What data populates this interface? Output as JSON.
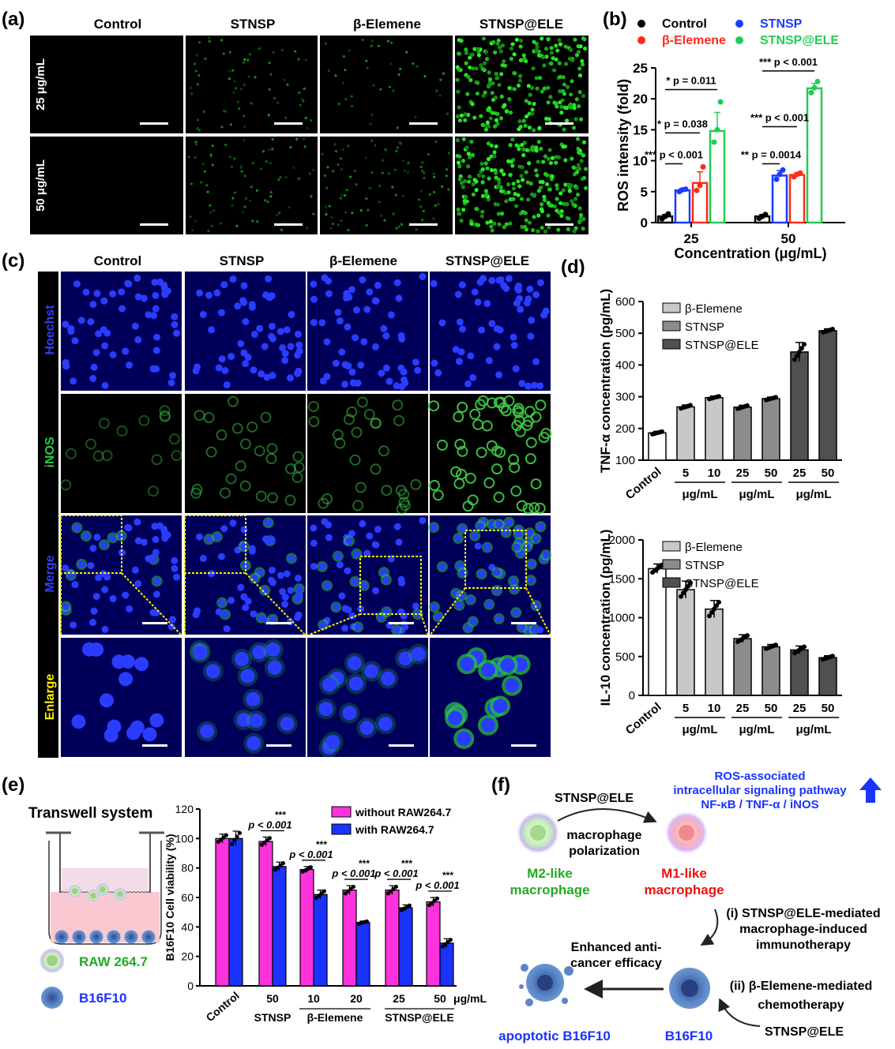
{
  "panel_a": {
    "letter": "(a)",
    "columns": [
      "Control",
      "STNSP",
      "β-Elemene",
      "STNSP@ELE"
    ],
    "rows": [
      "25 μg/mL",
      "50 μg/mL"
    ],
    "density": [
      [
        0.0,
        0.25,
        0.15,
        0.9
      ],
      [
        0.0,
        0.3,
        0.35,
        1.0
      ]
    ]
  },
  "panel_c": {
    "letter": "(c)",
    "columns": [
      "Control",
      "STNSP",
      "β-Elemene",
      "STNSP@ELE"
    ],
    "rows": [
      {
        "label": "Hoechst",
        "color": "#3040ff"
      },
      {
        "label": "iNOS",
        "color": "#22cc44"
      },
      {
        "label": "Merge",
        "color": "#3040ff"
      },
      {
        "label": "Enlarge",
        "color": "#ffee00"
      }
    ],
    "inos_level": [
      0.15,
      0.3,
      0.3,
      0.9
    ]
  },
  "panel_e": {
    "letter": "(e)",
    "schematic_title": "Transwell system",
    "legend_cells": [
      "RAW 264.7",
      "B16F10"
    ]
  },
  "panel_f": {
    "letter": "(f)",
    "top_label": "STNSP@ELE",
    "polarization": [
      "macrophage",
      "polarization"
    ],
    "pathway": [
      "ROS-associated",
      "intracellular signaling pathway",
      "NF-κB / TNF-α / iNOS"
    ],
    "m2": [
      "M2-like",
      "macrophage"
    ],
    "m1": [
      "M1-like",
      "macrophage"
    ],
    "route_i": [
      "(i) STNSP@ELE-mediated",
      "macrophage-induced",
      "immunotherapy"
    ],
    "route_ii": [
      "(ii) β-Elemene-mediated",
      "chemotherapy"
    ],
    "enhanced": [
      "Enhanced anti-",
      "cancer efficacy"
    ],
    "apoptotic": "apoptotic B16F10",
    "b16": "B16F10",
    "bottom_label": "STNSP@ELE"
  },
  "chart_data": [
    {
      "id": "b",
      "letter": "(b)",
      "type": "bar",
      "ylabel": "ROS intensity (fold)",
      "xlabel": "Concentration (μg/mL)",
      "categories": [
        "25",
        "50"
      ],
      "ylim": [
        0,
        25
      ],
      "yticks": [
        0,
        5,
        10,
        15,
        20,
        25
      ],
      "series": [
        {
          "name": "Control",
          "color": "#000000",
          "values": [
            1.0,
            1.0
          ],
          "err": [
            0.3,
            0.3
          ],
          "points": [
            [
              0.6,
              1.0,
              1.4
            ],
            [
              0.7,
              1.0,
              1.3
            ]
          ]
        },
        {
          "name": "STNSP",
          "color": "#1a3cff",
          "values": [
            5.2,
            7.6
          ],
          "err": [
            0.3,
            0.8
          ],
          "points": [
            [
              5.0,
              5.3,
              5.4
            ],
            [
              7.0,
              7.8,
              8.5
            ]
          ]
        },
        {
          "name": "β-Elemene",
          "color": "#ff2a1a",
          "values": [
            6.4,
            7.7
          ],
          "err": [
            1.8,
            0.3
          ],
          "points": [
            [
              5.2,
              6.0,
              9.0
            ],
            [
              7.4,
              7.8,
              8.0
            ]
          ]
        },
        {
          "name": "STNSP@ELE",
          "color": "#22cc55",
          "values": [
            14.8,
            21.7
          ],
          "err": [
            3.0,
            0.8
          ],
          "points": [
            [
              13.0,
              15.0,
              19.5
            ],
            [
              21.0,
              21.8,
              22.8
            ]
          ]
        }
      ],
      "annotations": [
        {
          "text": "*** p < 0.001",
          "group": 0,
          "from": 0,
          "to": 1,
          "y": 9.5
        },
        {
          "text": "* p = 0.038",
          "group": 0,
          "from": 0,
          "to": 2,
          "y": 14.5
        },
        {
          "text": "* p = 0.011",
          "group": 0,
          "from": 0,
          "to": 3,
          "y": 21.5
        },
        {
          "text": "** p = 0.0014",
          "group": 1,
          "from": 0,
          "to": 1,
          "y": 9.5
        },
        {
          "text": "*** p < 0.001",
          "group": 1,
          "from": 0,
          "to": 2,
          "y": 15.5
        },
        {
          "text": "*** p < 0.001",
          "group": 1,
          "from": 0,
          "to": 3,
          "y": 24.5
        }
      ]
    },
    {
      "id": "d1",
      "letter": "(d)",
      "type": "bar",
      "ylabel": "TNF-α concentration (pg/mL)",
      "categories": [
        "Control",
        "5",
        "10",
        "25",
        "50",
        "25",
        "50"
      ],
      "group_labels": [
        "μg/mL",
        "μg/mL",
        "μg/mL"
      ],
      "ylim": [
        100,
        600
      ],
      "yticks": [
        100,
        200,
        300,
        400,
        500,
        600
      ],
      "values": [
        186,
        268,
        297,
        267,
        294,
        441,
        508
      ],
      "err": [
        5,
        6,
        5,
        6,
        5,
        30,
        6
      ],
      "colors": [
        "#ffffff",
        "#c8c8c8",
        "#c8c8c8",
        "#8c8c8c",
        "#8c8c8c",
        "#505050",
        "#505050"
      ],
      "legend": [
        {
          "name": "β-Elemene",
          "color": "#c8c8c8"
        },
        {
          "name": "STNSP",
          "color": "#8c8c8c"
        },
        {
          "name": "STNSP@ELE",
          "color": "#505050"
        }
      ]
    },
    {
      "id": "d2",
      "type": "bar",
      "ylabel": "IL-10 concentration (pg/mL)",
      "categories": [
        "Control",
        "5",
        "10",
        "25",
        "50",
        "25",
        "50"
      ],
      "group_labels": [
        "μg/mL",
        "μg/mL",
        "μg/mL"
      ],
      "ylim": [
        0,
        2000
      ],
      "yticks": [
        0,
        500,
        1000,
        1500,
        2000
      ],
      "values": [
        1630,
        1360,
        1110,
        730,
        625,
        585,
        485
      ],
      "err": [
        60,
        110,
        110,
        50,
        30,
        50,
        25
      ],
      "colors": [
        "#ffffff",
        "#c8c8c8",
        "#c8c8c8",
        "#8c8c8c",
        "#8c8c8c",
        "#505050",
        "#505050"
      ],
      "legend": [
        {
          "name": "β-Elemene",
          "color": "#c8c8c8"
        },
        {
          "name": "STNSP",
          "color": "#8c8c8c"
        },
        {
          "name": "STNSP@ELE",
          "color": "#505050"
        }
      ]
    },
    {
      "id": "e",
      "type": "bar",
      "ylabel": "B16F10 Cell viability (%)",
      "categories": [
        "Control",
        "50",
        "10",
        "20",
        "25",
        "50"
      ],
      "unit": "μg/mL",
      "group_labels": [
        "STNSP",
        "β-Elemene",
        "STNSP@ELE"
      ],
      "ylim": [
        0,
        120
      ],
      "yticks": [
        0,
        20,
        40,
        60,
        80,
        100,
        120
      ],
      "series": [
        {
          "name": "without RAW264.7",
          "color": "#ff33dd",
          "values": [
            100,
            98,
            79,
            65,
            65,
            57
          ],
          "err": [
            3,
            3,
            2,
            3,
            3,
            3
          ]
        },
        {
          "name": "with RAW264.7",
          "color": "#1a33ff",
          "values": [
            100,
            81,
            62,
            43,
            53,
            29
          ],
          "err": [
            5,
            3,
            3,
            1,
            2,
            3
          ]
        }
      ],
      "significance": [
        "***",
        "***",
        "***",
        "***",
        "***"
      ],
      "pvalues": [
        "p < 0.001",
        "p < 0.001",
        "p < 0.001",
        "p < 0.001",
        "p < 0.001"
      ]
    }
  ]
}
